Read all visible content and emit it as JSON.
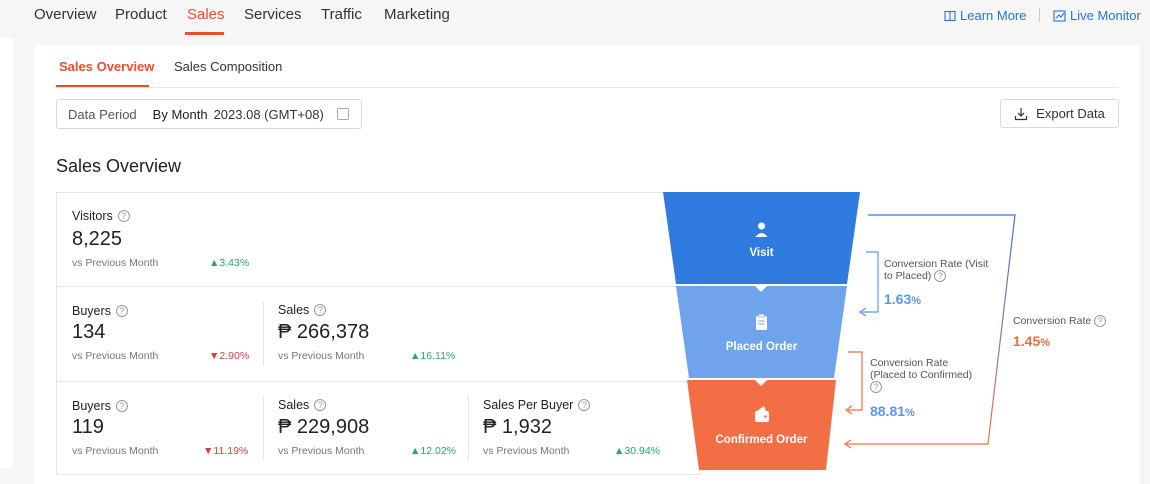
{
  "topnav": {
    "tabs": [
      "Overview",
      "Product",
      "Sales",
      "Services",
      "Traffic",
      "Marketing"
    ],
    "active": "Sales",
    "learn_more": "Learn More",
    "live_monitor": "Live Monitor"
  },
  "subtabs": {
    "overview": "Sales Overview",
    "composition": "Sales Composition"
  },
  "period": {
    "label": "Data Period",
    "mode": "By Month",
    "value": "2023.08 (GMT+08)"
  },
  "export_label": "Export Data",
  "section_title": "Sales Overview",
  "metrics": {
    "visit": {
      "visitors": {
        "label": "Visitors",
        "value": "8,225",
        "vs": "vs Previous Month",
        "change": "3.43%"
      }
    },
    "placed": {
      "buyers": {
        "label": "Buyers",
        "value": "134",
        "vs": "vs Previous Month",
        "change": "2.90%"
      },
      "sales": {
        "label": "Sales",
        "value": "₱ 266,378",
        "vs": "vs Previous Month",
        "change": "16.11%"
      }
    },
    "confirmed": {
      "buyers": {
        "label": "Buyers",
        "value": "119",
        "vs": "vs Previous Month",
        "change": "11.19%"
      },
      "sales": {
        "label": "Sales",
        "value": "₱ 229,908",
        "vs": "vs Previous Month",
        "change": "12.02%"
      },
      "spb": {
        "label": "Sales Per Buyer",
        "value": "₱ 1,932",
        "vs": "vs Previous Month",
        "change": "30.94%"
      }
    }
  },
  "funnel": {
    "visit": "Visit",
    "placed": "Placed Order",
    "confirmed": "Confirmed Order",
    "colors": {
      "visit": "#2f7be0",
      "placed": "#6fa3eb",
      "confirmed": "#f46e45"
    }
  },
  "conversion": {
    "visit_placed": {
      "label_1": "Conversion Rate (Visit",
      "label_2": "to Placed)",
      "value": "1.63",
      "unit": "%"
    },
    "placed_confirmed": {
      "label_1": "Conversion Rate",
      "label_2": "(Placed to Confirmed)",
      "value": "88.81",
      "unit": "%"
    },
    "overall": {
      "label": "Conversion Rate",
      "value": "1.45",
      "unit": "%"
    }
  }
}
